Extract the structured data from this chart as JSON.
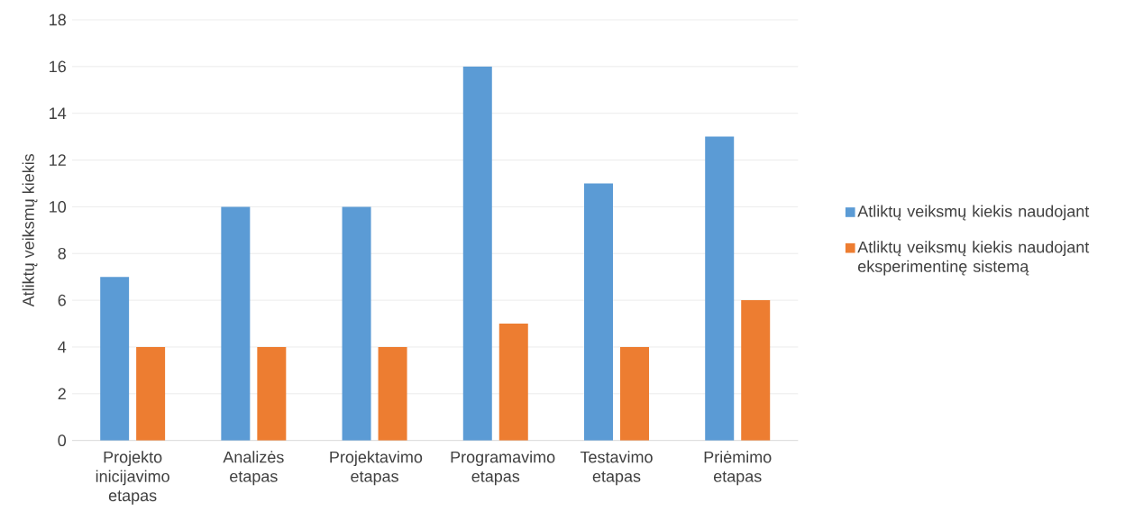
{
  "chart_data": {
    "type": "bar",
    "ylabel": "Atliktų veiksmų kiekis",
    "categories": [
      "Projekto inicijavimo etapas",
      "Analizės etapas",
      "Projektavimo etapas",
      "Programavimo etapas",
      "Testavimo etapas",
      "Priėmimo etapas"
    ],
    "series": [
      {
        "name": "Atliktų veiksmų kiekis naudojant",
        "color": "#5b9bd5",
        "values": [
          7,
          10,
          10,
          16,
          11,
          13
        ]
      },
      {
        "name": "Atliktų veiksmų kiekis naudojant eksperimentinę sistemą",
        "color": "#ed7d31",
        "values": [
          4,
          4,
          4,
          5,
          4,
          6
        ]
      }
    ],
    "ylim": [
      0,
      18
    ],
    "yticks": [
      0,
      2,
      4,
      6,
      8,
      10,
      12,
      14,
      16,
      18
    ],
    "grid": "y",
    "legend": "right"
  }
}
